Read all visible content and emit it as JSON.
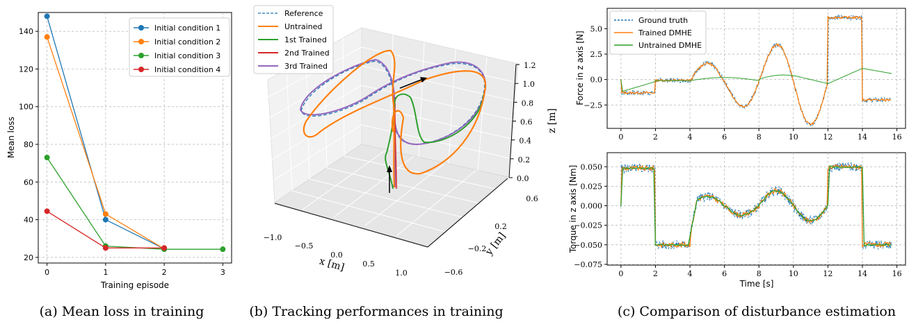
{
  "captions": {
    "a": "(a) Mean loss in training",
    "b": "(b) Tracking performances in training",
    "c": "(c) Comparison of disturbance estimation"
  },
  "colors": {
    "blue": "#1f77b4",
    "orange": "#ff7f0e",
    "green": "#2ca02c",
    "red": "#d62728",
    "purple": "#9467bd",
    "grid": "#b0b0b0"
  },
  "chart_data": [
    {
      "id": "a",
      "type": "line",
      "xlabel": "Training episode",
      "ylabel": "Mean loss",
      "xlim": [
        -0.15,
        3.15
      ],
      "ylim": [
        17,
        150
      ],
      "xticks": [
        0,
        1,
        2,
        3
      ],
      "yticks": [
        20,
        40,
        60,
        80,
        100,
        120,
        140
      ],
      "grid": true,
      "legend": "top-right",
      "series": [
        {
          "name": "Initial condition 1",
          "color": "#1f77b4",
          "x": [
            0,
            1,
            2
          ],
          "y": [
            148,
            40,
            24.5
          ]
        },
        {
          "name": "Initial condition 2",
          "color": "#ff7f0e",
          "x": [
            0,
            1,
            2
          ],
          "y": [
            137,
            43,
            24.5
          ]
        },
        {
          "name": "Initial condition 3",
          "color": "#2ca02c",
          "x": [
            0,
            1,
            2,
            3
          ],
          "y": [
            73,
            26,
            24.3,
            24.3
          ]
        },
        {
          "name": "Initial condition 4",
          "color": "#d62728",
          "x": [
            0,
            1,
            2
          ],
          "y": [
            44.5,
            25,
            25
          ]
        }
      ]
    },
    {
      "id": "b",
      "type": "line",
      "xlabel": "x [m]",
      "ylabel": "y [m]",
      "zlabel": "z [m]",
      "xticks": [
        "−1.0",
        "−0.5",
        "0.0",
        "0.5",
        "1.0"
      ],
      "yticks": [
        "0.6",
        "0.2",
        "−0.2",
        "−0.6"
      ],
      "zticks": [
        "1.2",
        "1.0",
        "0.8",
        "0.6",
        "0.4",
        "0.2",
        "0.0"
      ],
      "legend": "top-left",
      "series": [
        {
          "name": "Reference",
          "color": "#1f77b4",
          "style": "dashed"
        },
        {
          "name": "Untrained",
          "color": "#ff7f0e"
        },
        {
          "name": "1st Trained",
          "color": "#2ca02c"
        },
        {
          "name": "2nd Trained",
          "color": "#d62728"
        },
        {
          "name": "3rd Trained",
          "color": "#9467bd"
        }
      ]
    },
    {
      "id": "c1",
      "type": "line",
      "ylabel": "Force in z axis [N]",
      "xlim": [
        -0.8,
        16.5
      ],
      "ylim": [
        -4.8,
        7.0
      ],
      "xticks": [
        0,
        2,
        4,
        6,
        8,
        10,
        12,
        14,
        16
      ],
      "yticks": [
        -2.5,
        0.0,
        2.5,
        5.0
      ],
      "ytick_labels": [
        "−2.5",
        "0.0",
        "2.5",
        "5.0"
      ],
      "grid": true,
      "legend": "top-left",
      "series": [
        {
          "name": "Ground truth",
          "color": "#1f77b4",
          "style": "dashed"
        },
        {
          "name": "Trained DMHE",
          "color": "#ff7f0e"
        },
        {
          "name": "Untrained DMHE",
          "color": "#2ca02c"
        }
      ]
    },
    {
      "id": "c2",
      "type": "line",
      "xlabel": "Time [s]",
      "ylabel": "Torque in z axis [Nm]",
      "xlim": [
        -0.8,
        16.5
      ],
      "ylim": [
        -0.076,
        0.068
      ],
      "xticks": [
        0,
        2,
        4,
        6,
        8,
        10,
        12,
        14,
        16
      ],
      "yticks": [
        -0.075,
        -0.05,
        -0.025,
        0.0,
        0.025,
        0.05
      ],
      "ytick_labels": [
        "−0.075",
        "−0.050",
        "−0.025",
        "0.000",
        "0.025",
        "0.050"
      ],
      "grid": true
    }
  ]
}
